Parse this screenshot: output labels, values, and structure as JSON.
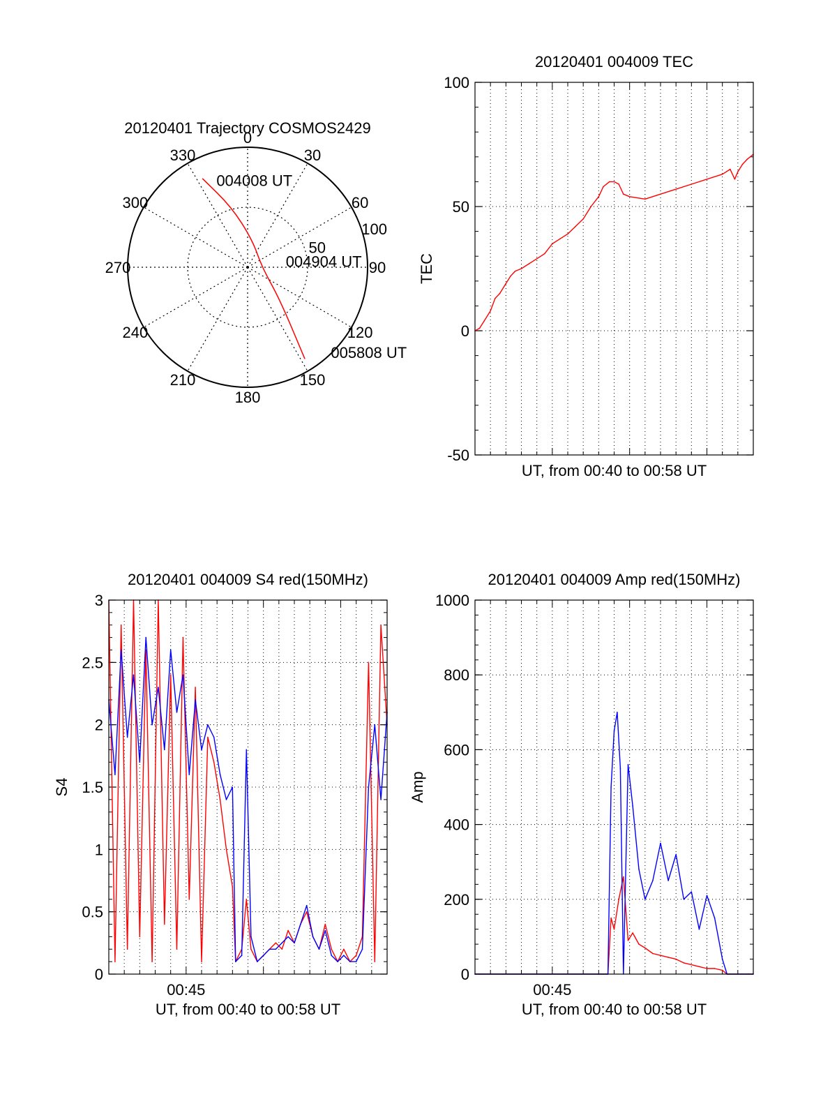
{
  "chart_data": [
    {
      "type": "polar",
      "title": "20120401 Trajectory COSMOS2429",
      "angle_labels": [
        "0",
        "30",
        "60",
        "90",
        "120",
        "150",
        "180",
        "210",
        "240",
        "270",
        "300",
        "330"
      ],
      "radius_labels": [
        "50",
        "100"
      ],
      "rmax": 100,
      "grid": true,
      "series": [
        {
          "color": "#ff0000",
          "points": [
            {
              "az": 333,
              "r": 83
            },
            {
              "az": 345,
              "r": 52
            },
            {
              "az": 10,
              "r": 23
            },
            {
              "az": 90,
              "r": 12
            },
            {
              "az": 135,
              "r": 38
            },
            {
              "az": 148,
              "r": 90
            }
          ]
        }
      ],
      "annotations": [
        {
          "text": "004008 UT",
          "az": 338,
          "r": 78
        },
        {
          "text": "004904 UT",
          "az": 80,
          "r": 29
        },
        {
          "text": "005808 UT",
          "az": 137,
          "r": 97
        }
      ]
    },
    {
      "type": "line",
      "title": "20120401 004009 TEC",
      "xlabel": "UT, from 00:40 to 00:58 UT",
      "ylabel": "TEC",
      "xlim": [
        0,
        18
      ],
      "ylim": [
        -50,
        100
      ],
      "yticks": [
        "-50",
        "0",
        "50",
        "100"
      ],
      "grid": true,
      "series": [
        {
          "color": "#ff0000",
          "x": [
            0,
            0.3,
            0.6,
            1.0,
            1.3,
            1.6,
            2.0,
            2.3,
            2.6,
            3.0,
            3.5,
            4.0,
            4.5,
            5.0,
            5.5,
            6.0,
            6.5,
            7.0,
            7.5,
            8.0,
            8.3,
            8.7,
            9.0,
            9.3,
            9.6,
            10.0,
            11.0,
            12.0,
            13.0,
            14.0,
            15.0,
            16.0,
            16.5,
            16.8,
            17.0,
            17.3,
            17.6,
            18.0
          ],
          "y": [
            0,
            1,
            4,
            8,
            13,
            15,
            19,
            22,
            24,
            25,
            27,
            29,
            31,
            35,
            37,
            39,
            42,
            45,
            50,
            54,
            58,
            60,
            60,
            59,
            55,
            54,
            53,
            55,
            57,
            59,
            61,
            63,
            65,
            61,
            64,
            67,
            69,
            71
          ]
        }
      ]
    },
    {
      "type": "line",
      "title": "20120401 004009 S4 red(150MHz)",
      "xlabel": "UT, from 00:40 to 00:58 UT",
      "ylabel": "S4",
      "xlim": [
        0,
        18
      ],
      "ylim": [
        0,
        3
      ],
      "xticks": [
        "00:45"
      ],
      "yticks": [
        "0",
        "0.5",
        "1",
        "1.5",
        "2",
        "2.5",
        "3"
      ],
      "grid": true,
      "series": [
        {
          "color": "#ff0000",
          "x": [
            0,
            0.4,
            0.8,
            1.2,
            1.6,
            2.0,
            2.4,
            2.8,
            3.2,
            3.6,
            4.0,
            4.4,
            4.8,
            5.2,
            5.6,
            6.0,
            6.4,
            6.8,
            7.2,
            7.6,
            8.0,
            8.2,
            8.6,
            8.9,
            9.2,
            9.6,
            10.0,
            10.4,
            10.8,
            11.2,
            11.6,
            12.0,
            12.4,
            12.8,
            13.2,
            13.6,
            14.0,
            14.4,
            14.8,
            15.2,
            15.6,
            16.0,
            16.4,
            16.8,
            17.2,
            17.6,
            18.0
          ],
          "y": [
            3.0,
            0.1,
            2.8,
            0.2,
            3.0,
            0.3,
            2.6,
            0.1,
            3.0,
            0.4,
            2.4,
            0.2,
            2.7,
            0.6,
            2.3,
            0.1,
            1.9,
            1.7,
            1.4,
            1.0,
            0.7,
            0.1,
            0.2,
            0.6,
            0.2,
            0.1,
            0.15,
            0.2,
            0.25,
            0.2,
            0.35,
            0.25,
            0.4,
            0.5,
            0.3,
            0.2,
            0.4,
            0.2,
            0.1,
            0.2,
            0.1,
            0.15,
            0.3,
            2.5,
            0.1,
            2.8,
            2.0
          ]
        },
        {
          "color": "#0000ff",
          "x": [
            0,
            0.4,
            0.8,
            1.2,
            1.6,
            2.0,
            2.4,
            2.8,
            3.2,
            3.6,
            4.0,
            4.4,
            4.8,
            5.2,
            5.6,
            6.0,
            6.4,
            6.8,
            7.2,
            7.6,
            8.0,
            8.2,
            8.6,
            8.9,
            9.2,
            9.6,
            10.0,
            10.4,
            10.8,
            11.2,
            11.6,
            12.0,
            12.4,
            12.8,
            13.2,
            13.6,
            14.0,
            14.4,
            14.8,
            15.2,
            15.6,
            16.0,
            16.4,
            16.8,
            17.2,
            17.6,
            18.0
          ],
          "y": [
            2.2,
            1.6,
            2.6,
            1.9,
            2.4,
            1.7,
            2.7,
            2.0,
            2.3,
            1.8,
            2.6,
            2.1,
            2.4,
            1.6,
            2.2,
            1.8,
            2.0,
            1.9,
            1.6,
            1.4,
            1.5,
            0.1,
            0.15,
            1.8,
            0.3,
            0.1,
            0.15,
            0.2,
            0.2,
            0.25,
            0.3,
            0.25,
            0.4,
            0.55,
            0.3,
            0.2,
            0.35,
            0.15,
            0.1,
            0.15,
            0.1,
            0.1,
            0.2,
            1.5,
            2.0,
            1.4,
            2.1
          ]
        }
      ]
    },
    {
      "type": "line",
      "title": "20120401 004009 Amp red(150MHz)",
      "xlabel": "UT, from 00:40 to 00:58 UT",
      "ylabel": "Amp",
      "xlim": [
        0,
        18
      ],
      "ylim": [
        0,
        1000
      ],
      "xticks": [
        "00:45"
      ],
      "yticks": [
        "0",
        "200",
        "400",
        "600",
        "800",
        "1000"
      ],
      "grid": true,
      "series": [
        {
          "color": "#ff0000",
          "x": [
            0,
            4,
            8,
            8.6,
            8.8,
            9.0,
            9.3,
            9.6,
            9.9,
            10.2,
            10.6,
            11.0,
            11.5,
            12.0,
            12.5,
            13.0,
            13.5,
            14.0,
            14.5,
            15.0,
            15.5,
            16.0,
            16.3,
            17.0,
            18.0
          ],
          "y": [
            0,
            0,
            0,
            0,
            150,
            120,
            200,
            260,
            90,
            110,
            80,
            70,
            55,
            50,
            45,
            40,
            30,
            25,
            20,
            15,
            15,
            10,
            0,
            0,
            0
          ]
        },
        {
          "color": "#0000ff",
          "x": [
            0,
            4,
            8,
            8.6,
            8.8,
            9.0,
            9.2,
            9.4,
            9.6,
            9.9,
            10.2,
            10.6,
            11.0,
            11.5,
            12.0,
            12.5,
            13.0,
            13.5,
            14.0,
            14.5,
            15.0,
            15.5,
            16.0,
            16.3,
            17.0,
            18.0
          ],
          "y": [
            0,
            0,
            0,
            0,
            500,
            650,
            700,
            550,
            0,
            560,
            450,
            280,
            200,
            250,
            350,
            250,
            320,
            200,
            220,
            120,
            210,
            150,
            40,
            0,
            0,
            0
          ]
        }
      ]
    }
  ]
}
